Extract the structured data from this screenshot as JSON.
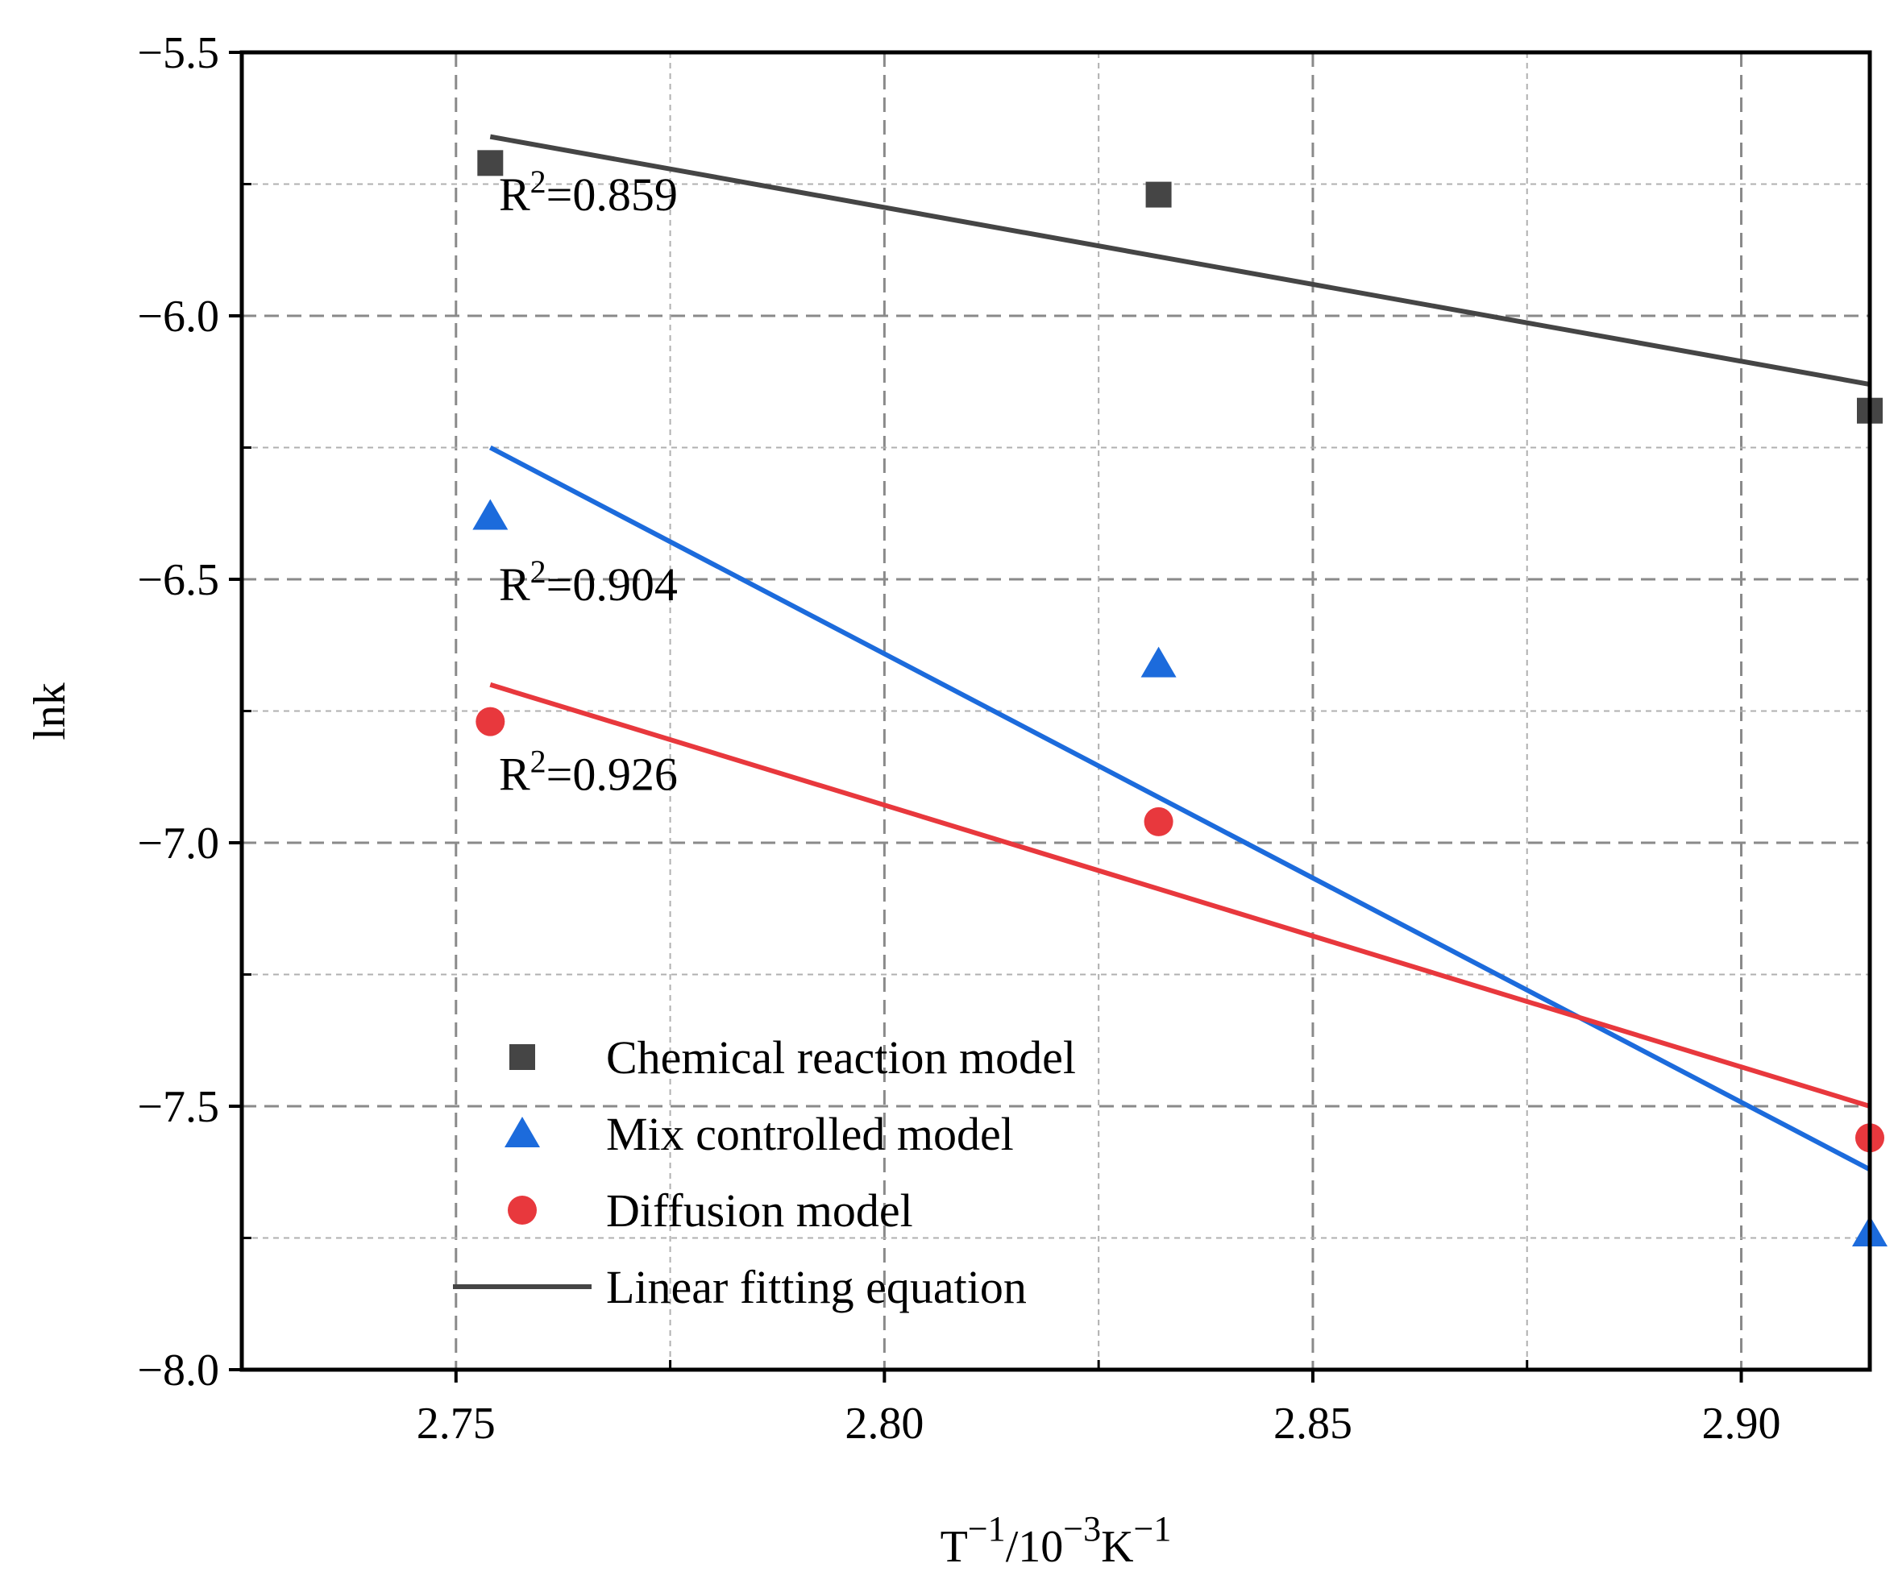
{
  "chart_data": {
    "type": "scatter",
    "title": "",
    "xlabel": {
      "parts": [
        {
          "text": "T",
          "sup": false
        },
        {
          "text": "−1",
          "sup": true
        },
        {
          "text": "/10",
          "sup": false
        },
        {
          "text": "−3",
          "sup": true
        },
        {
          "text": "K",
          "sup": false
        },
        {
          "text": "−1",
          "sup": true
        }
      ]
    },
    "ylabel": "lnk",
    "xlim": [
      2.725,
      2.915
    ],
    "ylim": [
      -8.0,
      -5.5
    ],
    "xticks": [
      2.75,
      2.8,
      2.85,
      2.9
    ],
    "xtick_labels": [
      "2.75",
      "2.80",
      "2.85",
      "2.90"
    ],
    "yticks": [
      -5.5,
      -6.0,
      -6.5,
      -7.0,
      -7.5,
      -8.0
    ],
    "ytick_labels": [
      "−5.5",
      "−6.0",
      "−6.5",
      "−7.0",
      "−7.5",
      "−8.0"
    ],
    "x_minor_ticks": [
      2.775,
      2.825,
      2.875
    ],
    "y_minor_ticks": [
      -5.75,
      -6.25,
      -6.75,
      -7.25,
      -7.75
    ],
    "grid": true,
    "legend_position": "bottom-left",
    "series": [
      {
        "name": "Chemical reaction model",
        "marker": "square",
        "color": "#454545",
        "x": [
          2.754,
          2.832,
          2.915
        ],
        "y": [
          -5.71,
          -5.77,
          -6.18
        ],
        "fit": {
          "x": [
            2.754,
            2.915
          ],
          "y": [
            -5.66,
            -6.13
          ]
        },
        "r2_label": {
          "base": "R",
          "sup": "2",
          "value": "=0.859",
          "x": 2.755,
          "y": -5.8
        }
      },
      {
        "name": "Mix controlled model",
        "marker": "triangle",
        "color": "#1c6bdc",
        "x": [
          2.754,
          2.832,
          2.915
        ],
        "y": [
          -6.38,
          -6.66,
          -7.74
        ],
        "fit": {
          "x": [
            2.754,
            2.915
          ],
          "y": [
            -6.25,
            -7.62
          ]
        },
        "r2_label": {
          "base": "R",
          "sup": "2",
          "value": "=0.904",
          "x": 2.755,
          "y": -6.54
        }
      },
      {
        "name": "Diffusion model",
        "marker": "circle",
        "color": "#e8383d",
        "x": [
          2.754,
          2.832,
          2.915
        ],
        "y": [
          -6.77,
          -6.96,
          -7.56
        ],
        "fit": {
          "x": [
            2.754,
            2.915
          ],
          "y": [
            -6.7,
            -7.5
          ]
        },
        "r2_label": {
          "base": "R",
          "sup": "2",
          "value": "=0.926",
          "x": 2.755,
          "y": -6.9
        }
      }
    ],
    "legend_items": [
      {
        "label": "Chemical reaction model",
        "marker": "square",
        "color": "#454545"
      },
      {
        "label": "Mix controlled model",
        "marker": "triangle",
        "color": "#1c6bdc"
      },
      {
        "label": "Diffusion model",
        "marker": "circle",
        "color": "#e8383d"
      },
      {
        "label": "Linear fitting equation",
        "marker": "line",
        "color": "#454545"
      }
    ]
  }
}
